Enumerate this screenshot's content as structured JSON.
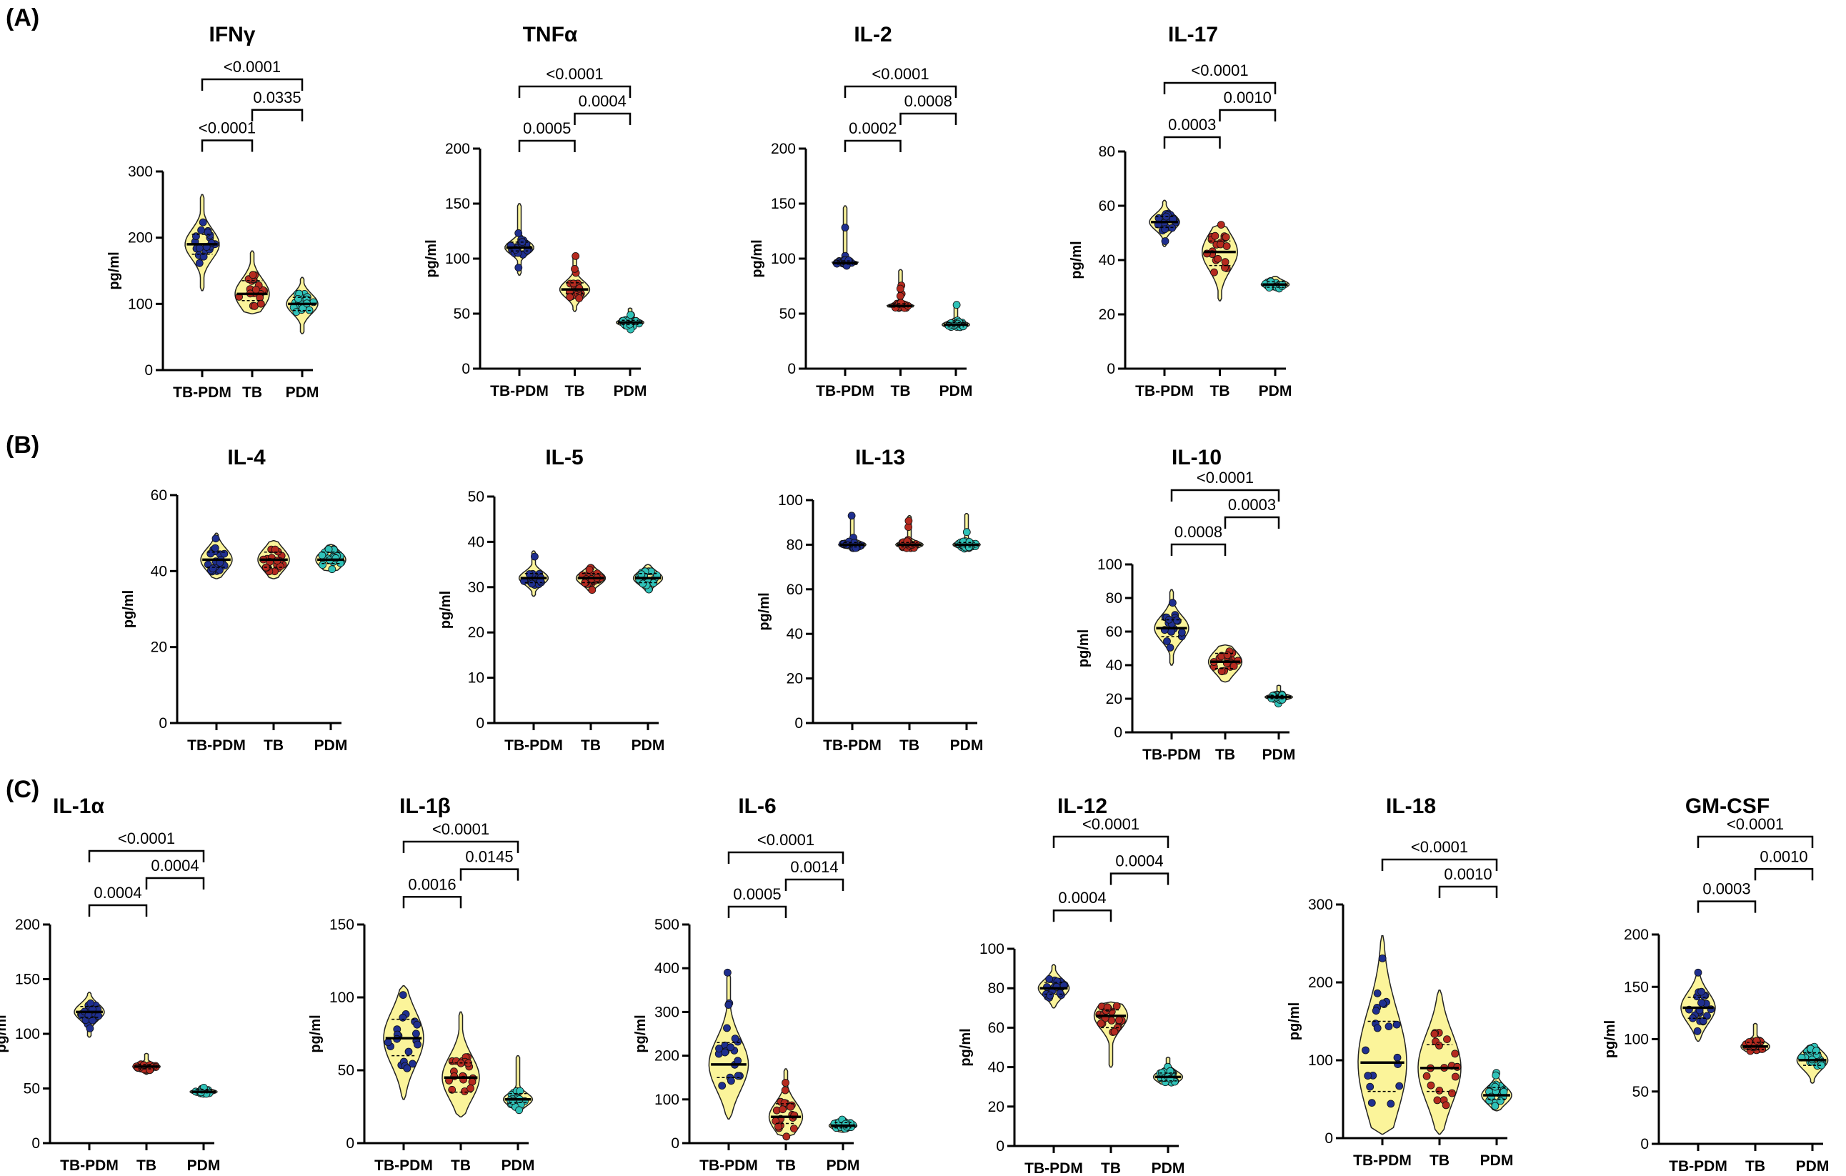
{
  "figure": {
    "section_labels": [
      "(A)",
      "(B)",
      "(C)"
    ],
    "colors": {
      "violin_fill": "#fbf49a",
      "tbpdm_point": "#1f2f8f",
      "tb_point": "#b52a1f",
      "pdm_point": "#2fc2b8",
      "axis": "#000000"
    }
  },
  "chart_data": [
    {
      "type": "violin",
      "section": "A",
      "title": "IFNγ",
      "ylabel": "pg/ml",
      "categories": [
        "TB-PDM",
        "TB",
        "PDM"
      ],
      "ylim": [
        0,
        300
      ],
      "yticks": [
        0,
        100,
        200,
        300
      ],
      "series": [
        {
          "name": "TB-PDM",
          "median": 190,
          "q1": 175,
          "q3": 205,
          "min": 120,
          "max": 265
        },
        {
          "name": "TB",
          "median": 115,
          "q1": 105,
          "q3": 135,
          "min": 85,
          "max": 180
        },
        {
          "name": "PDM",
          "median": 100,
          "q1": 90,
          "q3": 110,
          "min": 55,
          "max": 140
        }
      ],
      "comparisons": [
        {
          "from": "TB-PDM",
          "to": "PDM",
          "p": "<0.0001"
        },
        {
          "from": "TB",
          "to": "PDM",
          "p": "0.0335"
        },
        {
          "from": "TB-PDM",
          "to": "TB",
          "p": "<0.0001"
        }
      ]
    },
    {
      "type": "violin",
      "section": "A",
      "title": "TNFα",
      "ylabel": "pg/ml",
      "categories": [
        "TB-PDM",
        "TB",
        "PDM"
      ],
      "ylim": [
        0,
        200
      ],
      "yticks": [
        0,
        50,
        100,
        150,
        200
      ],
      "series": [
        {
          "name": "TB-PDM",
          "median": 110,
          "q1": 107,
          "q3": 115,
          "min": 85,
          "max": 150
        },
        {
          "name": "TB",
          "median": 72,
          "q1": 68,
          "q3": 78,
          "min": 52,
          "max": 105
        },
        {
          "name": "PDM",
          "median": 42,
          "q1": 40,
          "q3": 44,
          "min": 35,
          "max": 55
        }
      ],
      "comparisons": [
        {
          "from": "TB-PDM",
          "to": "PDM",
          "p": "<0.0001"
        },
        {
          "from": "TB",
          "to": "PDM",
          "p": "0.0004"
        },
        {
          "from": "TB-PDM",
          "to": "TB",
          "p": "0.0005"
        }
      ]
    },
    {
      "type": "violin",
      "section": "A",
      "title": "IL-2",
      "ylabel": "pg/ml",
      "categories": [
        "TB-PDM",
        "TB",
        "PDM"
      ],
      "ylim": [
        0,
        200
      ],
      "yticks": [
        0,
        50,
        100,
        150,
        200
      ],
      "series": [
        {
          "name": "TB-PDM",
          "median": 96,
          "q1": 95,
          "q3": 98,
          "min": 93,
          "max": 148
        },
        {
          "name": "TB",
          "median": 57,
          "q1": 56,
          "q3": 59,
          "min": 55,
          "max": 90
        },
        {
          "name": "PDM",
          "median": 40,
          "q1": 38,
          "q3": 42,
          "min": 36,
          "max": 58
        }
      ],
      "comparisons": [
        {
          "from": "TB-PDM",
          "to": "PDM",
          "p": "<0.0001"
        },
        {
          "from": "TB",
          "to": "PDM",
          "p": "0.0008"
        },
        {
          "from": "TB-PDM",
          "to": "TB",
          "p": "0.0002"
        }
      ]
    },
    {
      "type": "violin",
      "section": "A",
      "title": "IL-17",
      "ylabel": "pg/ml",
      "categories": [
        "TB-PDM",
        "TB",
        "PDM"
      ],
      "ylim": [
        0,
        80
      ],
      "yticks": [
        0,
        20,
        40,
        60,
        80
      ],
      "series": [
        {
          "name": "TB-PDM",
          "median": 54,
          "q1": 52,
          "q3": 56,
          "min": 45,
          "max": 62
        },
        {
          "name": "TB",
          "median": 43,
          "q1": 38,
          "q3": 47,
          "min": 25,
          "max": 53
        },
        {
          "name": "PDM",
          "median": 31,
          "q1": 30,
          "q3": 32,
          "min": 29,
          "max": 34
        }
      ],
      "comparisons": [
        {
          "from": "TB-PDM",
          "to": "PDM",
          "p": "<0.0001"
        },
        {
          "from": "TB",
          "to": "PDM",
          "p": "0.0010"
        },
        {
          "from": "TB-PDM",
          "to": "TB",
          "p": "0.0003"
        }
      ]
    },
    {
      "type": "violin",
      "section": "B",
      "title": "IL-4",
      "ylabel": "pg/ml",
      "categories": [
        "TB-PDM",
        "TB",
        "PDM"
      ],
      "ylim": [
        0,
        60
      ],
      "yticks": [
        0,
        20,
        40,
        60
      ],
      "series": [
        {
          "name": "TB-PDM",
          "median": 43,
          "q1": 41,
          "q3": 45,
          "min": 38,
          "max": 50
        },
        {
          "name": "TB",
          "median": 43,
          "q1": 41,
          "q3": 45,
          "min": 38,
          "max": 48
        },
        {
          "name": "PDM",
          "median": 43,
          "q1": 42,
          "q3": 45,
          "min": 40,
          "max": 47
        }
      ],
      "comparisons": []
    },
    {
      "type": "violin",
      "section": "B",
      "title": "IL-5",
      "ylabel": "pg/ml",
      "categories": [
        "TB-PDM",
        "TB",
        "PDM"
      ],
      "ylim": [
        0,
        50
      ],
      "yticks": [
        0,
        10,
        20,
        30,
        40,
        50
      ],
      "series": [
        {
          "name": "TB-PDM",
          "median": 32,
          "q1": 31,
          "q3": 33,
          "min": 28,
          "max": 38
        },
        {
          "name": "TB",
          "median": 32,
          "q1": 31,
          "q3": 33,
          "min": 29,
          "max": 35
        },
        {
          "name": "PDM",
          "median": 32,
          "q1": 31,
          "q3": 33,
          "min": 29,
          "max": 35
        }
      ],
      "comparisons": []
    },
    {
      "type": "violin",
      "section": "B",
      "title": "IL-13",
      "ylabel": "pg/ml",
      "categories": [
        "TB-PDM",
        "TB",
        "PDM"
      ],
      "ylim": [
        0,
        100
      ],
      "yticks": [
        0,
        20,
        40,
        60,
        80,
        100
      ],
      "series": [
        {
          "name": "TB-PDM",
          "median": 80,
          "q1": 79,
          "q3": 81,
          "min": 78,
          "max": 94
        },
        {
          "name": "TB",
          "median": 80,
          "q1": 79,
          "q3": 81,
          "min": 78,
          "max": 93
        },
        {
          "name": "PDM",
          "median": 80,
          "q1": 79,
          "q3": 81,
          "min": 78,
          "max": 94
        }
      ],
      "comparisons": []
    },
    {
      "type": "violin",
      "section": "B",
      "title": "IL-10",
      "ylabel": "pg/ml",
      "categories": [
        "TB-PDM",
        "TB",
        "PDM"
      ],
      "ylim": [
        0,
        100
      ],
      "yticks": [
        0,
        20,
        40,
        60,
        80,
        100
      ],
      "series": [
        {
          "name": "TB-PDM",
          "median": 62,
          "q1": 57,
          "q3": 67,
          "min": 40,
          "max": 85
        },
        {
          "name": "TB",
          "median": 42,
          "q1": 38,
          "q3": 47,
          "min": 30,
          "max": 52
        },
        {
          "name": "PDM",
          "median": 21,
          "q1": 20,
          "q3": 22,
          "min": 17,
          "max": 28
        }
      ],
      "comparisons": [
        {
          "from": "TB-PDM",
          "to": "PDM",
          "p": "<0.0001"
        },
        {
          "from": "TB",
          "to": "PDM",
          "p": "0.0003"
        },
        {
          "from": "TB-PDM",
          "to": "TB",
          "p": "0.0008"
        }
      ]
    },
    {
      "type": "violin",
      "section": "C",
      "title": "IL-1α",
      "ylabel": "pg/ml",
      "categories": [
        "TB-PDM",
        "TB",
        "PDM"
      ],
      "ylim": [
        0,
        200
      ],
      "yticks": [
        0,
        50,
        100,
        150,
        200
      ],
      "series": [
        {
          "name": "TB-PDM",
          "median": 120,
          "q1": 115,
          "q3": 125,
          "min": 97,
          "max": 138
        },
        {
          "name": "TB",
          "median": 70,
          "q1": 68,
          "q3": 72,
          "min": 63,
          "max": 82
        },
        {
          "name": "PDM",
          "median": 47,
          "q1": 46,
          "q3": 49,
          "min": 44,
          "max": 52
        }
      ],
      "comparisons": [
        {
          "from": "TB-PDM",
          "to": "PDM",
          "p": "<0.0001"
        },
        {
          "from": "TB",
          "to": "PDM",
          "p": "0.0004"
        },
        {
          "from": "TB-PDM",
          "to": "TB",
          "p": "0.0004"
        }
      ]
    },
    {
      "type": "violin",
      "section": "C",
      "title": "IL-1β",
      "ylabel": "pg/ml",
      "categories": [
        "TB-PDM",
        "TB",
        "PDM"
      ],
      "ylim": [
        0,
        150
      ],
      "yticks": [
        0,
        50,
        100,
        150
      ],
      "series": [
        {
          "name": "TB-PDM",
          "median": 72,
          "q1": 60,
          "q3": 85,
          "min": 30,
          "max": 108
        },
        {
          "name": "TB",
          "median": 45,
          "q1": 35,
          "q3": 55,
          "min": 18,
          "max": 90
        },
        {
          "name": "PDM",
          "median": 30,
          "q1": 28,
          "q3": 34,
          "min": 22,
          "max": 60
        }
      ],
      "comparisons": [
        {
          "from": "TB-PDM",
          "to": "PDM",
          "p": "<0.0001"
        },
        {
          "from": "TB",
          "to": "PDM",
          "p": "0.0145"
        },
        {
          "from": "TB-PDM",
          "to": "TB",
          "p": "0.0016"
        }
      ]
    },
    {
      "type": "violin",
      "section": "C",
      "title": "IL-6",
      "ylabel": "pg/ml",
      "categories": [
        "TB-PDM",
        "TB",
        "PDM"
      ],
      "ylim": [
        0,
        500
      ],
      "yticks": [
        0,
        100,
        200,
        300,
        400,
        500
      ],
      "series": [
        {
          "name": "TB-PDM",
          "median": 180,
          "q1": 150,
          "q3": 230,
          "min": 55,
          "max": 390
        },
        {
          "name": "TB",
          "median": 60,
          "q1": 45,
          "q3": 90,
          "min": 15,
          "max": 170
        },
        {
          "name": "PDM",
          "median": 40,
          "q1": 35,
          "q3": 47,
          "min": 25,
          "max": 60
        }
      ],
      "comparisons": [
        {
          "from": "TB-PDM",
          "to": "PDM",
          "p": "<0.0001"
        },
        {
          "from": "TB",
          "to": "PDM",
          "p": "0.0014"
        },
        {
          "from": "TB-PDM",
          "to": "TB",
          "p": "0.0005"
        }
      ]
    },
    {
      "type": "violin",
      "section": "C",
      "title": "IL-12",
      "ylabel": "pg/ml",
      "categories": [
        "TB-PDM",
        "TB",
        "PDM"
      ],
      "ylim": [
        0,
        100
      ],
      "yticks": [
        0,
        20,
        40,
        60,
        80,
        100
      ],
      "series": [
        {
          "name": "TB-PDM",
          "median": 80,
          "q1": 77,
          "q3": 83,
          "min": 70,
          "max": 92
        },
        {
          "name": "TB",
          "median": 66,
          "q1": 60,
          "q3": 69,
          "min": 40,
          "max": 73
        },
        {
          "name": "PDM",
          "median": 35,
          "q1": 33,
          "q3": 37,
          "min": 31,
          "max": 45
        }
      ],
      "comparisons": [
        {
          "from": "TB-PDM",
          "to": "PDM",
          "p": "<0.0001"
        },
        {
          "from": "TB",
          "to": "PDM",
          "p": "0.0004"
        },
        {
          "from": "TB-PDM",
          "to": "TB",
          "p": "0.0004"
        }
      ]
    },
    {
      "type": "violin",
      "section": "C",
      "title": "IL-18",
      "ylabel": "pg/ml",
      "categories": [
        "TB-PDM",
        "TB",
        "PDM"
      ],
      "ylim": [
        0,
        300
      ],
      "yticks": [
        0,
        100,
        200,
        300
      ],
      "series": [
        {
          "name": "TB-PDM",
          "median": 97,
          "q1": 60,
          "q3": 150,
          "min": 5,
          "max": 260
        },
        {
          "name": "TB",
          "median": 90,
          "q1": 60,
          "q3": 120,
          "min": 5,
          "max": 190
        },
        {
          "name": "PDM",
          "median": 55,
          "q1": 50,
          "q3": 65,
          "min": 35,
          "max": 85
        }
      ],
      "comparisons": [
        {
          "from": "TB-PDM",
          "to": "PDM",
          "p": "<0.0001"
        },
        {
          "from": "TB",
          "to": "PDM",
          "p": "0.0010"
        }
      ]
    },
    {
      "type": "violin",
      "section": "C",
      "title": "GM-CSF",
      "ylabel": "pg/ml",
      "categories": [
        "TB-PDM",
        "TB",
        "PDM"
      ],
      "ylim": [
        0,
        200
      ],
      "yticks": [
        0,
        50,
        100,
        150,
        200
      ],
      "series": [
        {
          "name": "TB-PDM",
          "median": 130,
          "q1": 120,
          "q3": 140,
          "min": 98,
          "max": 165
        },
        {
          "name": "TB",
          "median": 93,
          "q1": 90,
          "q3": 97,
          "min": 87,
          "max": 115
        },
        {
          "name": "PDM",
          "median": 80,
          "q1": 75,
          "q3": 87,
          "min": 58,
          "max": 95
        }
      ],
      "comparisons": [
        {
          "from": "TB-PDM",
          "to": "PDM",
          "p": "<0.0001"
        },
        {
          "from": "TB",
          "to": "PDM",
          "p": "0.0010"
        },
        {
          "from": "TB-PDM",
          "to": "TB",
          "p": "0.0003"
        }
      ]
    }
  ]
}
